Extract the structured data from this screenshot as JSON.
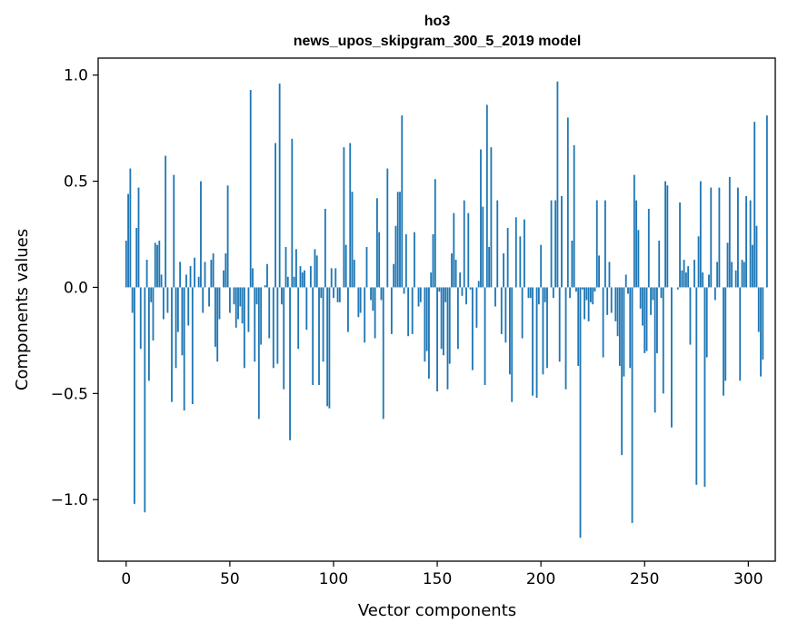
{
  "chart_data": {
    "type": "bar",
    "title": "ho3",
    "subtitle": "news_upos_skipgram_300_5_2019 model",
    "xlabel": "Vector components",
    "ylabel": "Components values",
    "xlim": [
      -13.5,
      313
    ],
    "ylim": [
      -1.29,
      1.08
    ],
    "xticks": [
      0,
      50,
      100,
      150,
      200,
      250,
      300
    ],
    "xtick_labels": [
      "0",
      "50",
      "100",
      "150",
      "200",
      "250",
      "300"
    ],
    "yticks": [
      -1.0,
      -0.5,
      0.0,
      0.5,
      1.0
    ],
    "ytick_labels": [
      "−1.0",
      "−0.5",
      "0.0",
      "0.5",
      "1.0"
    ],
    "grid": false,
    "bar_color": "#1f77b4",
    "values": [
      0.22,
      0.44,
      0.56,
      -0.12,
      -1.02,
      0.28,
      0.47,
      -0.29,
      0.0,
      -1.06,
      0.13,
      -0.44,
      -0.07,
      -0.25,
      0.21,
      0.2,
      0.22,
      0.06,
      -0.15,
      0.62,
      -0.12,
      0.0,
      -0.54,
      0.53,
      -0.38,
      -0.21,
      0.12,
      -0.32,
      -0.58,
      0.06,
      -0.18,
      0.1,
      -0.55,
      0.14,
      0.0,
      0.05,
      0.5,
      -0.12,
      0.12,
      0.0,
      -0.09,
      0.13,
      0.16,
      -0.28,
      -0.35,
      -0.15,
      0.0,
      0.08,
      0.16,
      0.48,
      -0.12,
      0.0,
      -0.08,
      -0.19,
      -0.15,
      -0.09,
      -0.17,
      -0.38,
      0.0,
      -0.21,
      0.93,
      0.09,
      -0.35,
      -0.08,
      -0.62,
      -0.27,
      0.0,
      0.01,
      0.11,
      -0.24,
      0.0,
      -0.38,
      0.68,
      -0.36,
      0.96,
      -0.08,
      -0.48,
      0.19,
      0.05,
      -0.72,
      0.7,
      0.05,
      0.18,
      -0.29,
      0.1,
      0.07,
      0.08,
      -0.2,
      0.0,
      0.1,
      -0.46,
      0.18,
      0.15,
      -0.46,
      -0.05,
      -0.35,
      0.37,
      -0.56,
      -0.57,
      0.09,
      -0.05,
      0.09,
      -0.07,
      -0.07,
      0.0,
      0.66,
      0.2,
      -0.21,
      0.68,
      0.45,
      0.13,
      0.0,
      -0.14,
      -0.12,
      0.0,
      -0.26,
      0.19,
      0.0,
      -0.06,
      -0.11,
      -0.24,
      0.42,
      0.26,
      -0.06,
      -0.62,
      0.0,
      0.56,
      0.0,
      -0.22,
      0.11,
      0.29,
      0.45,
      0.45,
      0.81,
      -0.03,
      0.25,
      -0.23,
      0.0,
      -0.22,
      0.26,
      0.0,
      -0.09,
      -0.07,
      0.0,
      -0.35,
      -0.3,
      -0.43,
      0.07,
      0.25,
      0.51,
      -0.49,
      -0.02,
      -0.29,
      -0.32,
      -0.07,
      -0.48,
      -0.36,
      0.16,
      0.35,
      0.13,
      -0.29,
      0.07,
      -0.04,
      0.41,
      -0.08,
      0.35,
      -0.01,
      -0.39,
      0.0,
      -0.19,
      0.03,
      0.65,
      0.38,
      -0.46,
      0.86,
      0.19,
      0.66,
      0.0,
      -0.09,
      0.41,
      0.0,
      -0.22,
      0.16,
      -0.26,
      0.28,
      -0.41,
      -0.54,
      0.0,
      0.33,
      0.0,
      0.24,
      -0.24,
      0.32,
      0.0,
      -0.05,
      -0.05,
      -0.51,
      0.0,
      -0.52,
      -0.08,
      0.2,
      -0.41,
      -0.07,
      -0.38,
      0.0,
      0.41,
      -0.05,
      0.41,
      0.97,
      -0.35,
      0.43,
      0.0,
      -0.48,
      0.8,
      -0.05,
      0.22,
      0.67,
      -0.02,
      -0.37,
      -1.18,
      -0.01,
      -0.15,
      -0.06,
      -0.16,
      -0.07,
      -0.08,
      -0.02,
      0.41,
      0.15,
      0.0,
      -0.33,
      0.41,
      -0.13,
      0.12,
      -0.12,
      0.0,
      -0.16,
      -0.23,
      -0.37,
      -0.79,
      -0.42,
      0.06,
      -0.03,
      -0.38,
      -1.11,
      0.53,
      0.41,
      0.27,
      -0.1,
      -0.18,
      -0.31,
      -0.3,
      0.37,
      -0.13,
      -0.06,
      -0.59,
      -0.31,
      0.22,
      -0.05,
      -0.5,
      0.5,
      0.48,
      0.0,
      -0.66,
      0.0,
      0.0,
      -0.01,
      0.4,
      0.08,
      0.13,
      0.07,
      0.1,
      -0.27,
      0.0,
      0.13,
      -0.93,
      0.24,
      0.5,
      0.07,
      -0.94,
      -0.33,
      0.06,
      0.47,
      0.0,
      -0.06,
      0.12,
      0.47,
      0.0,
      -0.51,
      -0.44,
      0.21,
      0.52,
      0.12,
      0.0,
      0.08,
      0.47,
      -0.44,
      0.13,
      0.12,
      0.43,
      0.0,
      0.41,
      0.2,
      0.78,
      0.29,
      -0.21,
      -0.42,
      -0.34,
      0.0,
      0.81,
      0.0
    ]
  }
}
